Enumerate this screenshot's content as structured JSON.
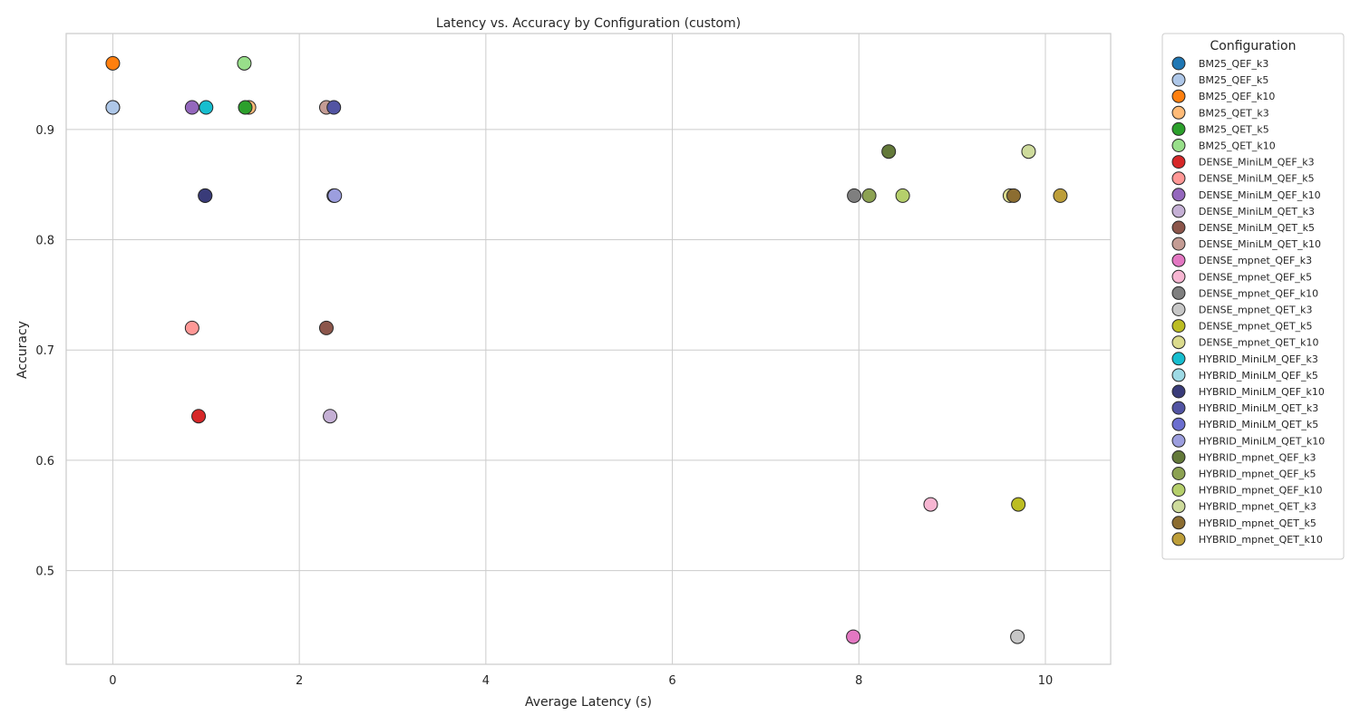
{
  "chart_data": {
    "type": "scatter",
    "title": "Latency vs. Accuracy by Configuration (custom)",
    "xlabel": "Average Latency (s)",
    "ylabel": "Accuracy",
    "xlim": [
      -0.5,
      10.7
    ],
    "ylim": [
      0.415,
      0.987
    ],
    "xticks": [
      0,
      2,
      4,
      6,
      8,
      10
    ],
    "xtick_labels": [
      "0",
      "2",
      "4",
      "6",
      "8",
      "10"
    ],
    "yticks": [
      0.5,
      0.6,
      0.7,
      0.8,
      0.9
    ],
    "ytick_labels": [
      "0.5",
      "0.6",
      "0.7",
      "0.8",
      "0.9"
    ],
    "grid": true,
    "legend_title": "Configuration",
    "legend_position": "outside-right",
    "series": [
      {
        "name": "BM25_QEF_k3",
        "color": "#1f77b4",
        "x": 0.0,
        "y": 0.92
      },
      {
        "name": "BM25_QEF_k5",
        "color": "#aec7e8",
        "x": 0.0,
        "y": 0.92
      },
      {
        "name": "BM25_QEF_k10",
        "color": "#ff7f0e",
        "x": 0.0,
        "y": 0.96
      },
      {
        "name": "BM25_QET_k3",
        "color": "#ffbb78",
        "x": 1.46,
        "y": 0.92
      },
      {
        "name": "BM25_QET_k5",
        "color": "#2ca02c",
        "x": 1.42,
        "y": 0.92
      },
      {
        "name": "BM25_QET_k10",
        "color": "#98df8a",
        "x": 1.41,
        "y": 0.96
      },
      {
        "name": "DENSE_MiniLM_QEF_k3",
        "color": "#d62728",
        "x": 0.92,
        "y": 0.64
      },
      {
        "name": "DENSE_MiniLM_QEF_k5",
        "color": "#ff9896",
        "x": 0.85,
        "y": 0.72
      },
      {
        "name": "DENSE_MiniLM_QEF_k10",
        "color": "#9467bd",
        "x": 0.85,
        "y": 0.92
      },
      {
        "name": "DENSE_MiniLM_QET_k3",
        "color": "#c5b0d5",
        "x": 2.33,
        "y": 0.64
      },
      {
        "name": "DENSE_MiniLM_QET_k5",
        "color": "#8c564b",
        "x": 2.29,
        "y": 0.72
      },
      {
        "name": "DENSE_MiniLM_QET_k10",
        "color": "#c49c94",
        "x": 2.29,
        "y": 0.92
      },
      {
        "name": "DENSE_mpnet_QEF_k3",
        "color": "#e377c2",
        "x": 7.94,
        "y": 0.44
      },
      {
        "name": "DENSE_mpnet_QEF_k5",
        "color": "#f7b6d2",
        "x": 8.77,
        "y": 0.56
      },
      {
        "name": "DENSE_mpnet_QEF_k10",
        "color": "#7f7f7f",
        "x": 7.95,
        "y": 0.84
      },
      {
        "name": "DENSE_mpnet_QET_k3",
        "color": "#c7c7c7",
        "x": 9.7,
        "y": 0.44
      },
      {
        "name": "DENSE_mpnet_QET_k5",
        "color": "#bcbd22",
        "x": 9.71,
        "y": 0.56
      },
      {
        "name": "DENSE_mpnet_QET_k10",
        "color": "#dbdb8d",
        "x": 9.62,
        "y": 0.84
      },
      {
        "name": "HYBRID_MiniLM_QEF_k3",
        "color": "#17becf",
        "x": 1.0,
        "y": 0.92
      },
      {
        "name": "HYBRID_MiniLM_QEF_k5",
        "color": "#9edae5",
        "x": 0.99,
        "y": 0.84
      },
      {
        "name": "HYBRID_MiniLM_QEF_k10",
        "color": "#393b79",
        "x": 0.99,
        "y": 0.84
      },
      {
        "name": "HYBRID_MiniLM_QET_k3",
        "color": "#5254a3",
        "x": 2.37,
        "y": 0.92
      },
      {
        "name": "HYBRID_MiniLM_QET_k5",
        "color": "#6b6ecf",
        "x": 2.37,
        "y": 0.84
      },
      {
        "name": "HYBRID_MiniLM_QET_k10",
        "color": "#9c9ede",
        "x": 2.38,
        "y": 0.84
      },
      {
        "name": "HYBRID_mpnet_QEF_k3",
        "color": "#637939",
        "x": 8.32,
        "y": 0.88
      },
      {
        "name": "HYBRID_mpnet_QEF_k5",
        "color": "#8ca252",
        "x": 8.11,
        "y": 0.84
      },
      {
        "name": "HYBRID_mpnet_QEF_k10",
        "color": "#b5cf6b",
        "x": 8.47,
        "y": 0.84
      },
      {
        "name": "HYBRID_mpnet_QET_k3",
        "color": "#cedb9c",
        "x": 9.82,
        "y": 0.88
      },
      {
        "name": "HYBRID_mpnet_QET_k5",
        "color": "#8c6d31",
        "x": 9.66,
        "y": 0.84
      },
      {
        "name": "HYBRID_mpnet_QET_k10",
        "color": "#bd9e39",
        "x": 10.16,
        "y": 0.84
      }
    ]
  }
}
